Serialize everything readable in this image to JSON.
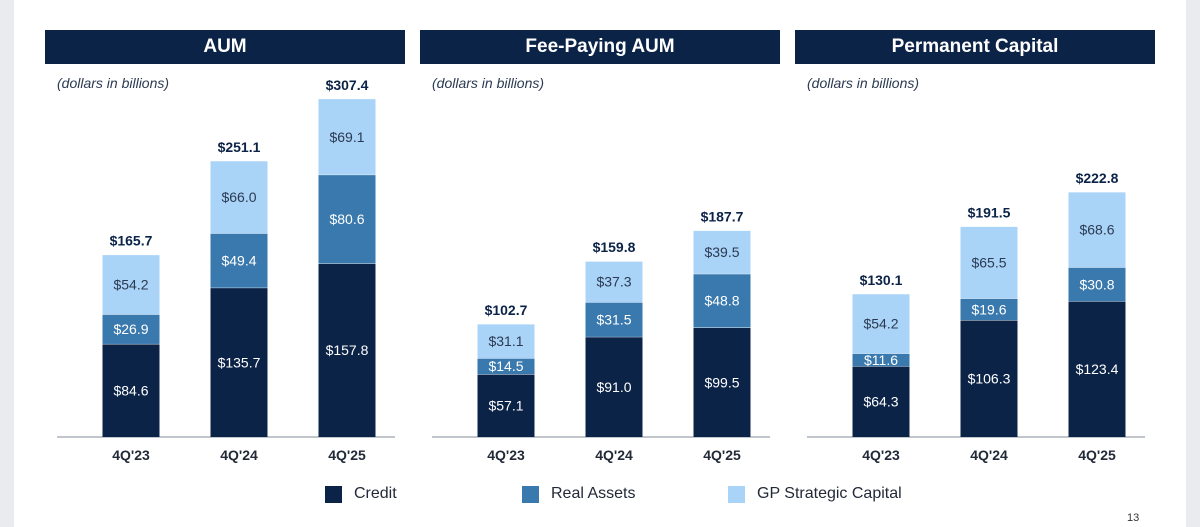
{
  "legend": {
    "credit": "Credit",
    "real_assets": "Real Assets",
    "gp": "GP Strategic Capital"
  },
  "colors": {
    "header": "#0c2348",
    "credit": "#0c2348",
    "real_assets": "#3a79ad",
    "gp": "#a9d3f7"
  },
  "page_number": "13",
  "chart_data": [
    {
      "type": "bar",
      "stacked": true,
      "title": "AUM",
      "subtitle": "(dollars in billions)",
      "categories": [
        "4Q'23",
        "4Q'24",
        "4Q'25"
      ],
      "series": [
        {
          "name": "Credit",
          "values": [
            84.6,
            135.7,
            157.8
          ],
          "labels": [
            "$84.6",
            "$135.7",
            "$157.8"
          ]
        },
        {
          "name": "Real Assets",
          "values": [
            26.9,
            49.4,
            80.6
          ],
          "labels": [
            "$26.9",
            "$49.4",
            "$80.6"
          ]
        },
        {
          "name": "GP Strategic Capital",
          "values": [
            54.2,
            66.0,
            69.1
          ],
          "labels": [
            "$54.2",
            "$66.0",
            "$69.1"
          ]
        }
      ],
      "totals": [
        165.7,
        251.1,
        307.4
      ],
      "total_labels": [
        "$165.7",
        "$251.1",
        "$307.4"
      ]
    },
    {
      "type": "bar",
      "stacked": true,
      "title": "Fee-Paying AUM",
      "subtitle": "(dollars in billions)",
      "categories": [
        "4Q'23",
        "4Q'24",
        "4Q'25"
      ],
      "series": [
        {
          "name": "Credit",
          "values": [
            57.1,
            91.0,
            99.5
          ],
          "labels": [
            "$57.1",
            "$91.0",
            "$99.5"
          ]
        },
        {
          "name": "Real Assets",
          "values": [
            14.5,
            31.5,
            48.8
          ],
          "labels": [
            "$14.5",
            "$31.5",
            "$48.8"
          ]
        },
        {
          "name": "GP Strategic Capital",
          "values": [
            31.1,
            37.3,
            39.5
          ],
          "labels": [
            "$31.1",
            "$37.3",
            "$39.5"
          ]
        }
      ],
      "totals": [
        102.7,
        159.8,
        187.7
      ],
      "total_labels": [
        "$102.7",
        "$159.8",
        "$187.7"
      ]
    },
    {
      "type": "bar",
      "stacked": true,
      "title": "Permanent Capital",
      "subtitle": "(dollars in billions)",
      "categories": [
        "4Q'23",
        "4Q'24",
        "4Q'25"
      ],
      "series": [
        {
          "name": "Credit",
          "values": [
            64.3,
            106.3,
            123.4
          ],
          "labels": [
            "$64.3",
            "$106.3",
            "$123.4"
          ]
        },
        {
          "name": "Real Assets",
          "values": [
            11.6,
            19.6,
            30.8
          ],
          "labels": [
            "$11.6",
            "$19.6",
            "$30.8"
          ]
        },
        {
          "name": "GP Strategic Capital",
          "values": [
            54.2,
            65.5,
            68.6
          ],
          "labels": [
            "$54.2",
            "$65.5",
            "$68.6"
          ]
        }
      ],
      "totals": [
        130.1,
        191.5,
        222.8
      ],
      "total_labels": [
        "$130.1",
        "$191.5",
        "$222.8"
      ]
    }
  ]
}
